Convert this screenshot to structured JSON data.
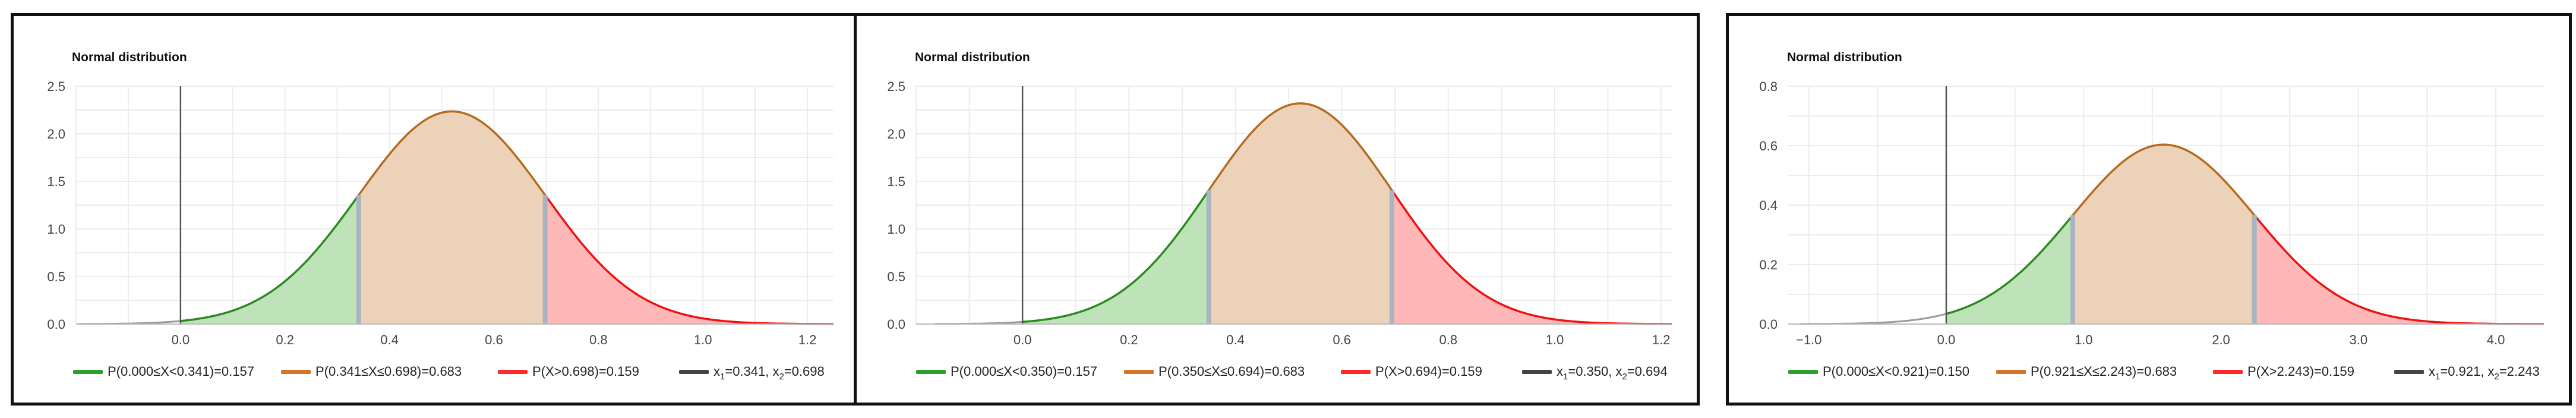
{
  "chart_data": [
    {
      "type": "area",
      "title": "Normal distribution",
      "mu": 0.5195,
      "sigma": 0.1785,
      "x1": 0.341,
      "x2": 0.698,
      "xlim": [
        -0.2,
        1.25
      ],
      "ylim": [
        0,
        2.5
      ],
      "xticks": [
        "0.0",
        "0.2",
        "0.4",
        "0.6",
        "0.8",
        "1.0",
        "1.2"
      ],
      "xtick_values": [
        0.0,
        0.2,
        0.4,
        0.6,
        0.8,
        1.0,
        1.2
      ],
      "yticks": [
        "0.0",
        "0.5",
        "1.0",
        "1.5",
        "2.0",
        "2.5"
      ],
      "ytick_values": [
        0.0,
        0.5,
        1.0,
        1.5,
        2.0,
        2.5
      ],
      "legend": [
        {
          "label": "P(0.000≤X<0.341)=0.157",
          "color": "#2ca02c"
        },
        {
          "label": "P(0.341≤X≤0.698)=0.683",
          "color": "#d2742a"
        },
        {
          "label": "P(X>0.698)=0.159",
          "color": "#ff2a2a"
        },
        {
          "pre": "x",
          "sub1": "1",
          "mid": "=0.341, x",
          "sub2": "2",
          "post": "=0.698",
          "color": "#444444"
        }
      ],
      "colors": {
        "left_fill": "#bfe3b8",
        "mid_fill": "#ecd2b8",
        "right_fill": "#ffb7b7",
        "left_line": "#2a8a1e",
        "mid_line": "#b56a1c",
        "right_line": "#ee1111",
        "tail_line": "#999999"
      }
    },
    {
      "type": "area",
      "title": "Normal distribution",
      "mu": 0.522,
      "sigma": 0.172,
      "x1": 0.35,
      "x2": 0.694,
      "xlim": [
        -0.2,
        1.22
      ],
      "ylim": [
        0,
        2.5
      ],
      "xticks": [
        "0.0",
        "0.2",
        "0.4",
        "0.6",
        "0.8",
        "1.0",
        "1.2"
      ],
      "xtick_values": [
        0.0,
        0.2,
        0.4,
        0.6,
        0.8,
        1.0,
        1.2
      ],
      "yticks": [
        "0.0",
        "0.5",
        "1.0",
        "1.5",
        "2.0",
        "2.5"
      ],
      "ytick_values": [
        0.0,
        0.5,
        1.0,
        1.5,
        2.0,
        2.5
      ],
      "legend": [
        {
          "label": "P(0.000≤X<0.350)=0.157",
          "color": "#2ca02c"
        },
        {
          "label": "P(0.350≤X≤0.694)=0.683",
          "color": "#d2742a"
        },
        {
          "label": "P(X>0.694)=0.159",
          "color": "#ff2a2a"
        },
        {
          "pre": "x",
          "sub1": "1",
          "mid": "=0.350, x",
          "sub2": "2",
          "post": "=0.694",
          "color": "#444444"
        }
      ],
      "colors": {
        "left_fill": "#bfe3b8",
        "mid_fill": "#ecd2b8",
        "right_fill": "#ffb7b7",
        "left_line": "#2a8a1e",
        "mid_line": "#b56a1c",
        "right_line": "#ee1111",
        "tail_line": "#999999"
      }
    },
    {
      "type": "area",
      "title": "Normal distribution",
      "mu": 1.582,
      "sigma": 0.661,
      "x1": 0.921,
      "x2": 2.243,
      "xlim": [
        -1.15,
        4.35
      ],
      "ylim": [
        0,
        0.8
      ],
      "xticks": [
        "−1.0",
        "0.0",
        "1.0",
        "2.0",
        "3.0",
        "4.0"
      ],
      "xtick_values": [
        -1.0,
        0.0,
        1.0,
        2.0,
        3.0,
        4.0
      ],
      "yticks": [
        "0.0",
        "0.2",
        "0.4",
        "0.6",
        "0.8"
      ],
      "ytick_values": [
        0.0,
        0.2,
        0.4,
        0.6,
        0.8
      ],
      "legend": [
        {
          "label": "P(0.000≤X<0.921)=0.150",
          "color": "#2ca02c"
        },
        {
          "label": "P(0.921≤X≤2.243)=0.683",
          "color": "#d2742a"
        },
        {
          "label": "P(X>2.243)=0.159",
          "color": "#ff2a2a"
        },
        {
          "pre": "x",
          "sub1": "1",
          "mid": "=0.921, x",
          "sub2": "2",
          "post": "=2.243",
          "color": "#444444"
        }
      ],
      "colors": {
        "left_fill": "#bfe3b8",
        "mid_fill": "#ecd2b8",
        "right_fill": "#ffb7b7",
        "left_line": "#2a8a1e",
        "mid_line": "#b56a1c",
        "right_line": "#ee1111",
        "tail_line": "#999999"
      }
    }
  ]
}
